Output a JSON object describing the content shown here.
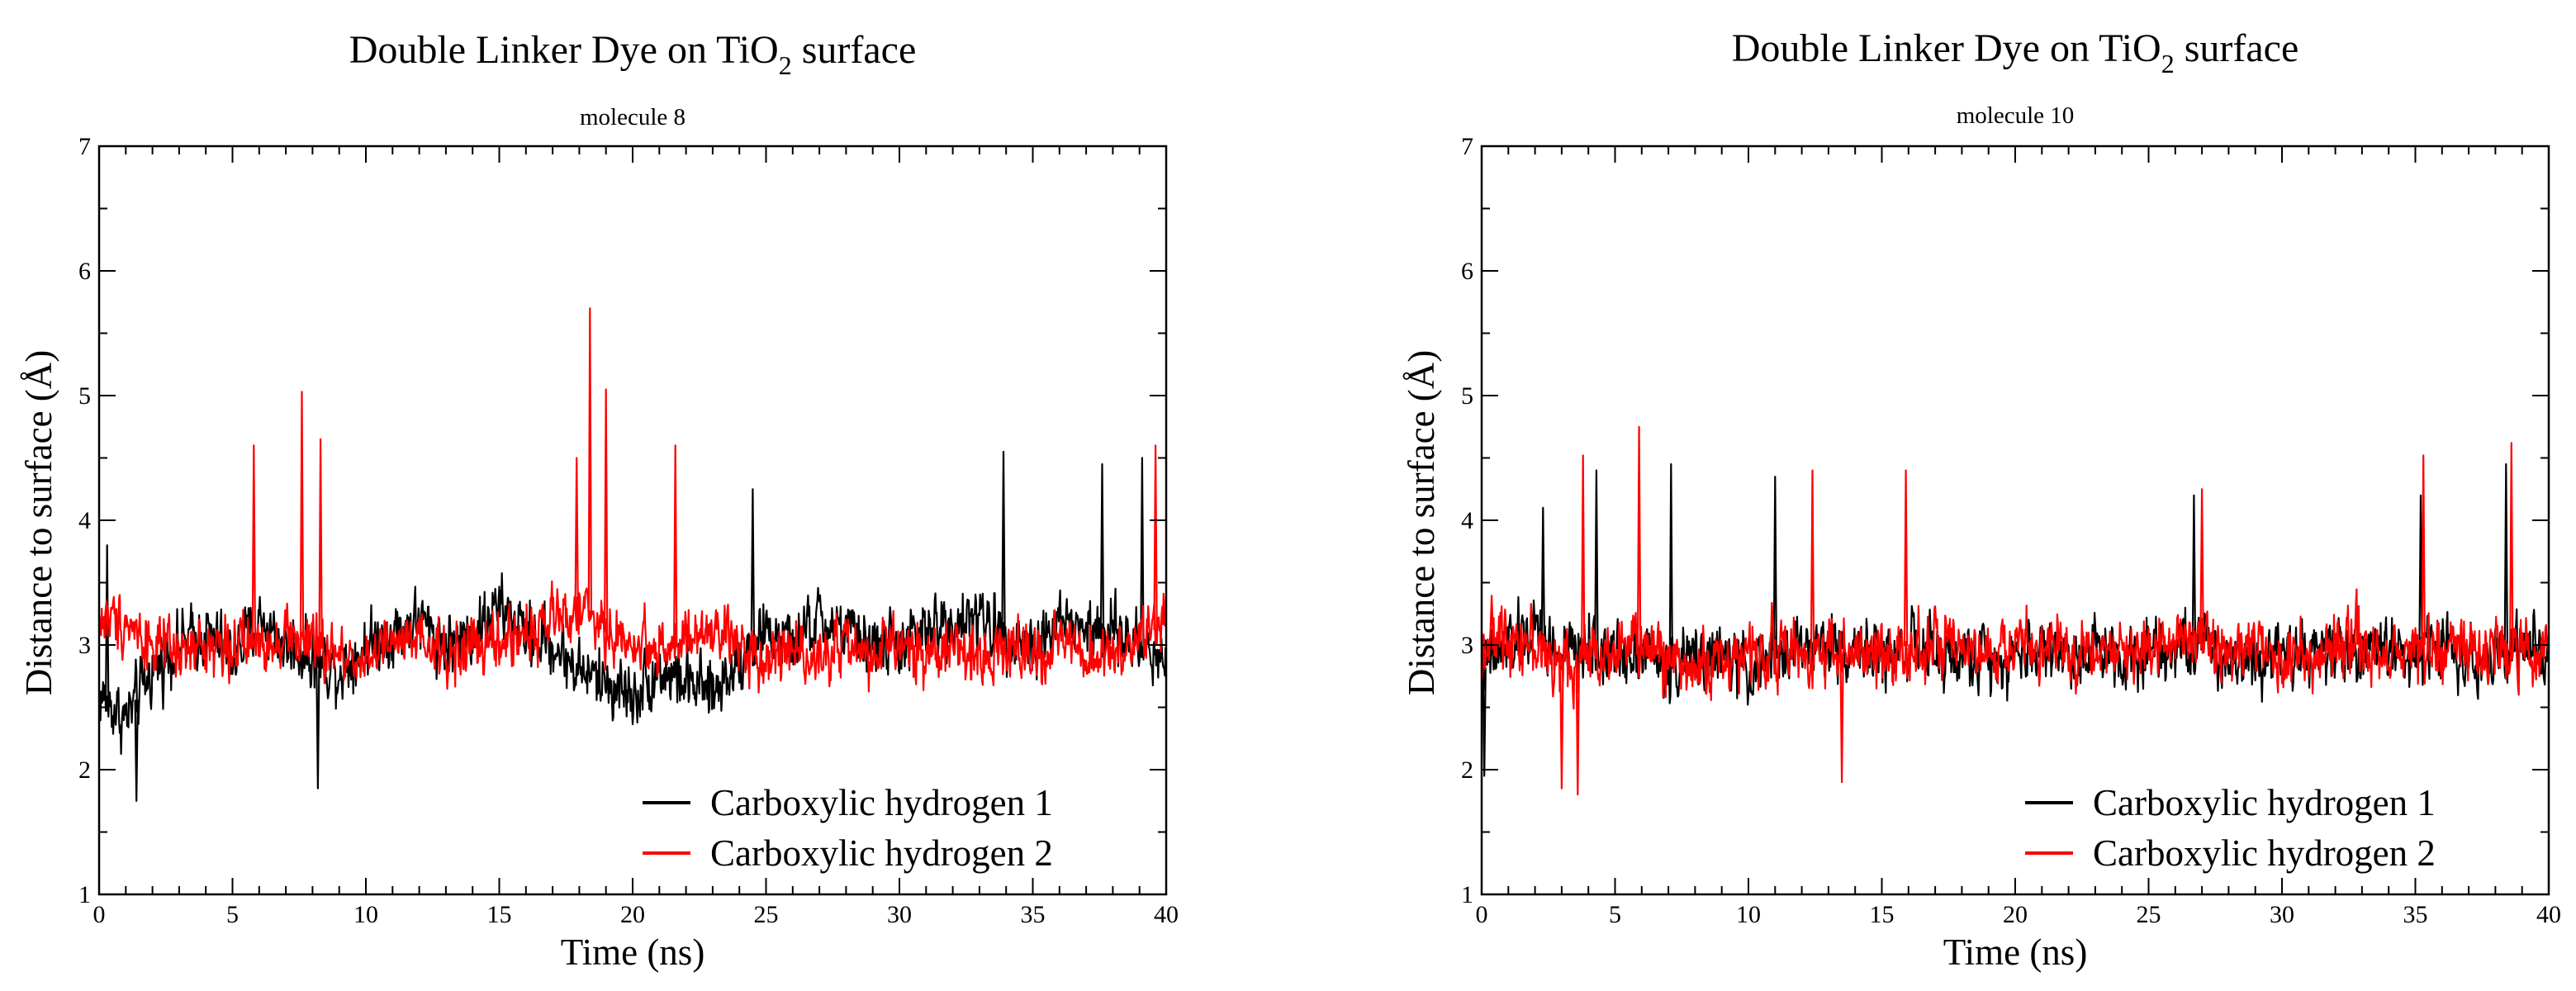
{
  "chart_data": [
    {
      "type": "line",
      "title": "Double Linker Dye on TiO",
      "title_sub": "2",
      "title_tail": " surface",
      "subtitle": "molecule 8",
      "xlabel": "Time (ns)",
      "ylabel": "Distance to surface (Å)",
      "xlim": [
        0,
        40
      ],
      "ylim": [
        1,
        7
      ],
      "xticks": [
        0,
        5,
        10,
        15,
        20,
        25,
        30,
        35,
        40
      ],
      "yticks": [
        1,
        2,
        3,
        4,
        5,
        6,
        7
      ],
      "legend_position": "bottom-right",
      "series": [
        {
          "name": "Carboxylic hydrogen 1",
          "color": "#000000",
          "x": [
            0,
            1,
            2,
            3,
            4,
            5,
            6,
            7,
            8,
            9,
            10,
            11,
            12,
            13,
            14,
            15,
            16,
            17,
            18,
            19,
            20,
            21,
            22,
            23,
            24,
            25,
            26,
            27,
            28,
            29,
            30,
            31,
            32,
            33,
            34,
            35,
            36,
            37,
            38,
            39,
            40
          ],
          "values": [
            2.6,
            2.4,
            2.8,
            3.0,
            3.1,
            2.9,
            3.2,
            3.0,
            2.9,
            2.8,
            3.0,
            3.1,
            3.2,
            3.0,
            3.1,
            3.3,
            3.1,
            3.0,
            2.8,
            2.7,
            2.6,
            2.8,
            2.7,
            2.6,
            2.9,
            3.1,
            3.0,
            3.2,
            3.1,
            3.0,
            3.0,
            3.1,
            3.2,
            3.2,
            3.1,
            3.0,
            3.2,
            3.1,
            3.1,
            3.0,
            2.9
          ],
          "spread": 0.55,
          "peaks": [
            [
              0.3,
              3.8
            ],
            [
              1.4,
              1.75
            ],
            [
              8.2,
              1.85
            ],
            [
              33.9,
              4.55
            ],
            [
              37.6,
              4.45
            ],
            [
              39.1,
              4.5
            ],
            [
              24.5,
              4.25
            ]
          ]
        },
        {
          "name": "Carboxylic hydrogen 2",
          "color": "#ff0000",
          "x": [
            0,
            1,
            2,
            3,
            4,
            5,
            6,
            7,
            8,
            9,
            10,
            11,
            12,
            13,
            14,
            15,
            16,
            17,
            18,
            19,
            20,
            21,
            22,
            23,
            24,
            25,
            26,
            27,
            28,
            29,
            30,
            31,
            32,
            33,
            34,
            35,
            36,
            37,
            38,
            39,
            40
          ],
          "values": [
            3.2,
            3.2,
            3.0,
            2.9,
            3.0,
            3.0,
            3.0,
            3.1,
            3.0,
            2.9,
            2.9,
            3.0,
            3.0,
            2.9,
            3.0,
            3.0,
            3.1,
            3.2,
            3.3,
            3.1,
            3.0,
            3.0,
            3.0,
            3.1,
            3.0,
            2.9,
            3.0,
            2.9,
            3.0,
            2.9,
            3.0,
            2.9,
            3.0,
            2.9,
            3.0,
            2.9,
            3.0,
            2.9,
            2.9,
            3.0,
            3.2
          ],
          "spread": 0.5,
          "peaks": [
            [
              7.6,
              5.03
            ],
            [
              8.3,
              4.65
            ],
            [
              18.4,
              5.7
            ],
            [
              19.0,
              5.05
            ],
            [
              21.6,
              4.6
            ],
            [
              39.6,
              4.6
            ],
            [
              5.8,
              4.6
            ],
            [
              17.9,
              4.5
            ]
          ]
        }
      ]
    },
    {
      "type": "line",
      "title": "Double Linker Dye on TiO",
      "title_sub": "2",
      "title_tail": " surface",
      "subtitle": "molecule 10",
      "xlabel": "Time (ns)",
      "ylabel": "Distance to surface (Å)",
      "xlim": [
        0,
        40
      ],
      "ylim": [
        1,
        7
      ],
      "xticks": [
        0,
        5,
        10,
        15,
        20,
        25,
        30,
        35,
        40
      ],
      "yticks": [
        1,
        2,
        3,
        4,
        5,
        6,
        7
      ],
      "legend_position": "bottom-right",
      "series": [
        {
          "name": "Carboxylic hydrogen 1",
          "color": "#000000",
          "x": [
            0,
            1,
            2,
            3,
            4,
            5,
            6,
            7,
            8,
            9,
            10,
            11,
            12,
            13,
            14,
            15,
            16,
            17,
            18,
            19,
            20,
            21,
            22,
            23,
            24,
            25,
            26,
            27,
            28,
            29,
            30,
            31,
            32,
            33,
            34,
            35,
            36,
            37,
            38,
            39,
            40
          ],
          "values": [
            2.8,
            3.0,
            3.1,
            2.9,
            3.0,
            2.9,
            3.0,
            2.8,
            2.9,
            2.9,
            2.8,
            2.9,
            3.0,
            3.0,
            3.0,
            2.9,
            3.0,
            2.9,
            2.9,
            2.9,
            2.9,
            3.0,
            2.9,
            3.0,
            2.9,
            3.0,
            3.0,
            3.0,
            2.9,
            2.9,
            3.0,
            2.9,
            3.0,
            2.9,
            3.0,
            2.9,
            3.0,
            2.9,
            2.9,
            3.0,
            2.8
          ],
          "spread": 0.55,
          "peaks": [
            [
              0.1,
              1.95
            ],
            [
              2.3,
              4.1
            ],
            [
              4.3,
              4.4
            ],
            [
              7.1,
              4.45
            ],
            [
              11.0,
              4.35
            ],
            [
              26.7,
              4.2
            ],
            [
              38.4,
              4.45
            ],
            [
              35.2,
              4.2
            ]
          ]
        },
        {
          "name": "Carboxylic hydrogen 2",
          "color": "#ff0000",
          "x": [
            0,
            1,
            2,
            3,
            4,
            5,
            6,
            7,
            8,
            9,
            10,
            11,
            12,
            13,
            14,
            15,
            16,
            17,
            18,
            19,
            20,
            21,
            22,
            23,
            24,
            25,
            26,
            27,
            28,
            29,
            30,
            31,
            32,
            33,
            34,
            35,
            36,
            37,
            38,
            39,
            40
          ],
          "values": [
            3.0,
            3.1,
            3.0,
            2.8,
            2.9,
            3.0,
            3.0,
            2.9,
            2.8,
            2.9,
            2.9,
            3.0,
            2.9,
            3.0,
            2.9,
            2.9,
            3.0,
            3.0,
            2.9,
            2.9,
            3.0,
            3.0,
            2.9,
            3.0,
            2.9,
            3.0,
            3.1,
            3.1,
            2.9,
            3.0,
            2.9,
            2.9,
            3.0,
            3.0,
            2.9,
            3.0,
            3.0,
            2.9,
            3.0,
            2.9,
            3.0
          ],
          "spread": 0.55,
          "peaks": [
            [
              3.8,
              4.52
            ],
            [
              5.9,
              4.75
            ],
            [
              3.0,
              1.85
            ],
            [
              3.6,
              1.8
            ],
            [
              12.4,
              4.4
            ],
            [
              15.9,
              4.4
            ],
            [
              27.0,
              4.25
            ],
            [
              35.3,
              4.52
            ],
            [
              38.6,
              4.62
            ],
            [
              13.5,
              1.9
            ]
          ]
        }
      ]
    }
  ]
}
